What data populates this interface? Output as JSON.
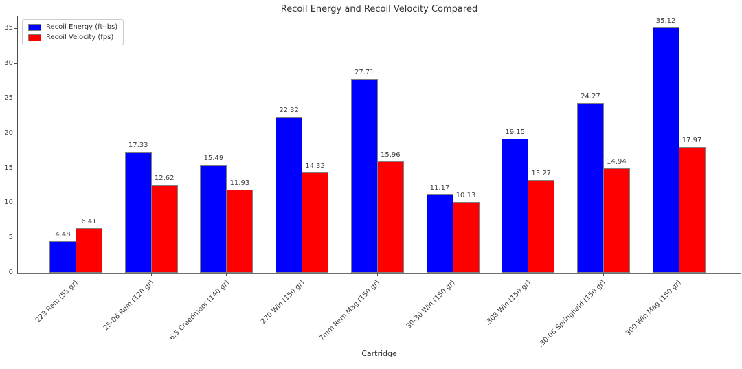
{
  "chart_data": {
    "type": "bar",
    "title": "Recoil Energy and Recoil Velocity Compared",
    "xlabel": "Cartridge",
    "ylabel": "",
    "categories": [
      "223 Rem (55 gr)",
      "25-06 Rem (120 gr)",
      "6.5 Creedmoor (140 gr)",
      "270 Win (150 gr)",
      "7mm Rem Mag (150 gr)",
      "30-30 Win (150 gr)",
      ".308 Win (150 gr)",
      ".30-06 Springfield (150 gr)",
      "300 Win Mag (150 gr)"
    ],
    "series": [
      {
        "name": "Recoil Energy (ft-lbs)",
        "color": "#0000ff",
        "values": [
          4.48,
          17.33,
          15.49,
          22.32,
          27.71,
          11.17,
          19.15,
          24.27,
          35.12
        ]
      },
      {
        "name": "Recoil Velocity (fps)",
        "color": "#ff0000",
        "values": [
          6.41,
          12.62,
          11.93,
          14.32,
          15.96,
          10.13,
          13.27,
          14.94,
          17.97
        ]
      }
    ],
    "yticks": [
      0,
      5,
      10,
      15,
      20,
      25,
      30,
      35
    ],
    "ylim": [
      0,
      36.8
    ],
    "bar_edge_color": "#808080",
    "value_label_color": "#3d3d3d",
    "legend_position": "upper left",
    "grid": false,
    "value_labels_shown": true
  }
}
